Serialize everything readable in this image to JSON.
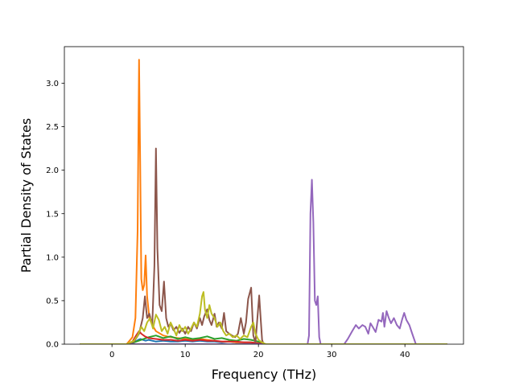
{
  "chart_data": {
    "type": "line",
    "xlabel": "Frequency (THz)",
    "ylabel": "Partial Density of States",
    "xlim": [
      -6.5,
      48.0
    ],
    "ylim": [
      0.0,
      3.42
    ],
    "xticks": [
      0,
      10,
      20,
      30,
      40
    ],
    "yticks": [
      0.0,
      0.5,
      1.0,
      1.5,
      2.0,
      2.5,
      3.0
    ],
    "xtick_labels": [
      "0",
      "10",
      "20",
      "30",
      "40"
    ],
    "ytick_labels": [
      "0.0",
      "0.5",
      "1.0",
      "1.5",
      "2.0",
      "2.5",
      "3.0"
    ],
    "grid": false,
    "legend": "none",
    "series": [
      {
        "color": "#1f77b4",
        "x": [
          -4.3,
          2.0,
          2.6,
          3.2,
          3.6,
          3.9,
          4.2,
          4.6,
          5.0,
          5.5,
          6.0,
          7.0,
          8.0,
          9.0,
          10.0,
          11.0,
          12.0,
          13.0,
          14.0,
          15.0,
          16.0,
          17.0,
          18.0,
          19.0,
          19.6,
          20.3,
          21.0,
          45.7
        ],
        "y": [
          0.0,
          0.0,
          0.01,
          0.03,
          0.05,
          0.06,
          0.05,
          0.04,
          0.05,
          0.04,
          0.03,
          0.04,
          0.03,
          0.03,
          0.04,
          0.03,
          0.04,
          0.03,
          0.03,
          0.02,
          0.03,
          0.02,
          0.02,
          0.02,
          0.01,
          0.01,
          0.0,
          0.0
        ]
      },
      {
        "color": "#ff7f0e",
        "x": [
          -4.3,
          2.0,
          2.8,
          3.2,
          3.5,
          3.7,
          3.85,
          4.0,
          4.2,
          4.4,
          4.6,
          4.8,
          5.1,
          5.5,
          6.0,
          7.0,
          8.0,
          9.0,
          10.0,
          11.0,
          12.0,
          13.0,
          14.0,
          15.0,
          16.0,
          17.0,
          18.0,
          19.0,
          20.0,
          21.0,
          45.7
        ],
        "y": [
          0.0,
          0.0,
          0.08,
          0.3,
          1.3,
          3.27,
          2.1,
          0.75,
          0.62,
          0.68,
          1.02,
          0.55,
          0.3,
          0.22,
          0.15,
          0.1,
          0.08,
          0.07,
          0.06,
          0.05,
          0.06,
          0.05,
          0.04,
          0.03,
          0.03,
          0.02,
          0.02,
          0.02,
          0.01,
          0.0,
          0.0
        ]
      },
      {
        "color": "#2ca02c",
        "x": [
          -4.3,
          2.0,
          3.0,
          4.0,
          5.0,
          6.0,
          7.0,
          8.0,
          9.0,
          10.0,
          11.0,
          12.0,
          13.0,
          14.0,
          15.0,
          16.0,
          17.0,
          18.0,
          19.0,
          20.0,
          21.0,
          45.7
        ],
        "y": [
          0.0,
          0.0,
          0.02,
          0.05,
          0.08,
          0.1,
          0.07,
          0.09,
          0.06,
          0.08,
          0.06,
          0.07,
          0.09,
          0.06,
          0.07,
          0.05,
          0.04,
          0.06,
          0.05,
          0.03,
          0.0,
          0.0
        ]
      },
      {
        "color": "#d62728",
        "x": [
          -4.3,
          2.0,
          2.8,
          3.3,
          3.7,
          4.0,
          4.5,
          5.0,
          6.0,
          7.0,
          8.0,
          9.0,
          10.0,
          11.0,
          12.0,
          13.0,
          14.0,
          15.0,
          16.0,
          17.0,
          18.0,
          19.0,
          20.0,
          21.0,
          45.7
        ],
        "y": [
          0.0,
          0.0,
          0.03,
          0.1,
          0.15,
          0.12,
          0.09,
          0.07,
          0.06,
          0.05,
          0.05,
          0.04,
          0.05,
          0.04,
          0.05,
          0.04,
          0.04,
          0.03,
          0.03,
          0.03,
          0.02,
          0.02,
          0.01,
          0.0,
          0.0
        ]
      },
      {
        "color": "#9467bd",
        "x": [
          -4.3,
          26.7,
          26.9,
          27.1,
          27.3,
          27.5,
          27.7,
          27.9,
          28.1,
          28.3,
          28.5,
          31.7,
          32.2,
          32.8,
          33.3,
          33.7,
          34.2,
          34.6,
          35.0,
          35.3,
          35.6,
          36.0,
          36.4,
          36.8,
          37.0,
          37.2,
          37.5,
          37.8,
          38.1,
          38.5,
          38.9,
          39.3,
          39.6,
          39.9,
          40.2,
          40.6,
          41.0,
          41.5,
          45.7
        ],
        "y": [
          0.0,
          0.0,
          0.1,
          1.5,
          1.89,
          1.4,
          0.5,
          0.45,
          0.55,
          0.08,
          0.0,
          0.0,
          0.06,
          0.15,
          0.22,
          0.18,
          0.22,
          0.2,
          0.12,
          0.24,
          0.2,
          0.14,
          0.28,
          0.26,
          0.36,
          0.2,
          0.38,
          0.3,
          0.24,
          0.3,
          0.22,
          0.18,
          0.28,
          0.36,
          0.28,
          0.22,
          0.12,
          0.0,
          0.0
        ]
      },
      {
        "color": "#8c564b",
        "x": [
          -4.3,
          2.0,
          3.0,
          3.7,
          4.2,
          4.5,
          4.8,
          5.1,
          5.5,
          5.8,
          6.0,
          6.2,
          6.5,
          6.8,
          7.1,
          7.4,
          7.7,
          8.0,
          8.4,
          8.8,
          9.2,
          9.6,
          10.0,
          10.4,
          10.8,
          11.2,
          11.6,
          12.0,
          12.3,
          12.6,
          13.0,
          13.3,
          13.6,
          14.0,
          14.3,
          14.6,
          15.0,
          15.3,
          15.6,
          16.0,
          16.4,
          16.8,
          17.2,
          17.6,
          18.0,
          18.3,
          18.6,
          19.0,
          19.3,
          19.6,
          19.9,
          20.1,
          20.3,
          20.5,
          20.7,
          21.0,
          45.7
        ],
        "y": [
          0.0,
          0.0,
          0.03,
          0.12,
          0.3,
          0.55,
          0.3,
          0.35,
          0.22,
          0.9,
          2.25,
          1.1,
          0.45,
          0.38,
          0.72,
          0.3,
          0.2,
          0.24,
          0.16,
          0.2,
          0.13,
          0.18,
          0.12,
          0.2,
          0.15,
          0.25,
          0.18,
          0.3,
          0.22,
          0.32,
          0.4,
          0.28,
          0.22,
          0.35,
          0.2,
          0.25,
          0.18,
          0.36,
          0.15,
          0.12,
          0.1,
          0.08,
          0.12,
          0.3,
          0.12,
          0.25,
          0.52,
          0.65,
          0.1,
          0.02,
          0.35,
          0.56,
          0.3,
          0.05,
          0.0,
          0.0,
          0.0
        ]
      },
      {
        "color": "#bcbd22",
        "x": [
          -4.3,
          2.0,
          3.0,
          3.5,
          4.0,
          4.4,
          4.8,
          5.2,
          5.6,
          6.0,
          6.4,
          6.8,
          7.2,
          7.6,
          8.0,
          8.4,
          8.8,
          9.2,
          9.6,
          10.0,
          10.4,
          10.8,
          11.2,
          11.6,
          12.0,
          12.3,
          12.5,
          12.7,
          13.0,
          13.3,
          13.6,
          14.0,
          14.4,
          14.8,
          15.2,
          15.6,
          16.0,
          16.5,
          17.0,
          17.5,
          18.0,
          18.5,
          19.0,
          19.3,
          19.6,
          20.0,
          20.5,
          21.0,
          45.7
        ],
        "y": [
          0.0,
          0.0,
          0.04,
          0.1,
          0.2,
          0.15,
          0.25,
          0.3,
          0.18,
          0.34,
          0.28,
          0.15,
          0.2,
          0.12,
          0.25,
          0.18,
          0.1,
          0.22,
          0.15,
          0.2,
          0.12,
          0.18,
          0.25,
          0.2,
          0.35,
          0.55,
          0.6,
          0.4,
          0.3,
          0.45,
          0.35,
          0.3,
          0.2,
          0.25,
          0.15,
          0.1,
          0.12,
          0.08,
          0.1,
          0.06,
          0.1,
          0.08,
          0.2,
          0.25,
          0.12,
          0.05,
          0.02,
          0.0,
          0.0
        ]
      }
    ]
  }
}
